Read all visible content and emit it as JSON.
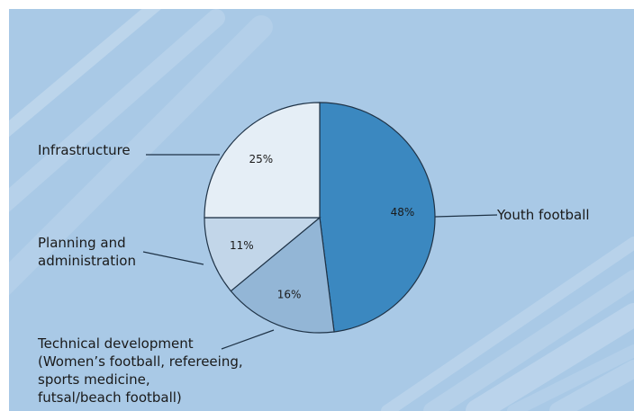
{
  "chart_data": {
    "type": "pie",
    "title": "",
    "slices": [
      {
        "label": "Youth football",
        "label_lines": [
          "Youth football"
        ],
        "value": 48,
        "display": "48%",
        "color": "#3b88c0"
      },
      {
        "label": "Technical development (Women's football, refereeing, sports medicine, futsal/beach football)",
        "label_lines": [
          "Technical development",
          "(Women’s football, refereeing,",
          "sports medicine,",
          "futsal/beach football)"
        ],
        "value": 16,
        "display": "16%",
        "color": "#93b6d6"
      },
      {
        "label": "Planning and administration",
        "label_lines": [
          "Planning and",
          "administration"
        ],
        "value": 11,
        "display": "11%",
        "color": "#c2d6e9"
      },
      {
        "label": "Infrastructure",
        "label_lines": [
          "Infrastructure"
        ],
        "value": 25,
        "display": "25%",
        "color": "#e5eef6"
      }
    ]
  }
}
